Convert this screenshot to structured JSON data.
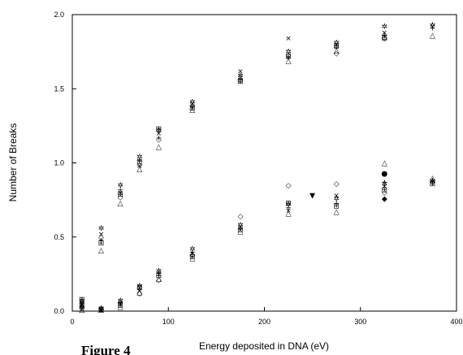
{
  "chart_data": {
    "type": "scatter",
    "title": "",
    "xlabel": "Energy deposited in DNA (eV)",
    "ylabel": "Number of Breaks",
    "xlim": [
      0,
      400
    ],
    "ylim": [
      0,
      2.0
    ],
    "x_ticks": [
      0,
      100,
      200,
      300,
      400
    ],
    "y_ticks": [
      0.0,
      0.5,
      1.0,
      1.5,
      2.0
    ],
    "x_tick_labels": [
      "0",
      "100",
      "200",
      "300",
      "400"
    ],
    "y_tick_labels": [
      "0.0",
      "0.5",
      "1.0",
      "1.5",
      "2.0"
    ],
    "grid": false,
    "legend": "none",
    "series": [
      {
        "marker": "plus",
        "symbol": "+",
        "points": [
          [
            10,
            0.03
          ],
          [
            30,
            0.48
          ],
          [
            50,
            0.82
          ],
          [
            70,
            1.02
          ],
          [
            90,
            1.17
          ],
          [
            125,
            1.38
          ],
          [
            175,
            1.57
          ],
          [
            225,
            1.71
          ],
          [
            275,
            1.78
          ],
          [
            325,
            1.86
          ],
          [
            375,
            1.91
          ],
          [
            10,
            0.02
          ],
          [
            30,
            0.01
          ],
          [
            50,
            0.06
          ],
          [
            70,
            0.15
          ],
          [
            90,
            0.26
          ],
          [
            125,
            0.4
          ],
          [
            175,
            0.56
          ],
          [
            225,
            0.7
          ],
          [
            275,
            0.73
          ],
          [
            325,
            0.87
          ],
          [
            375,
            0.87
          ]
        ]
      },
      {
        "marker": "cross",
        "symbol": "×",
        "points": [
          [
            10,
            0.05
          ],
          [
            30,
            0.52
          ],
          [
            50,
            0.8
          ],
          [
            70,
            0.98
          ],
          [
            90,
            1.2
          ],
          [
            125,
            1.4
          ],
          [
            175,
            1.62
          ],
          [
            225,
            1.84
          ],
          [
            275,
            1.8
          ],
          [
            325,
            1.88
          ],
          [
            375,
            1.92
          ],
          [
            10,
            0.04
          ],
          [
            30,
            0.01
          ],
          [
            50,
            0.05
          ],
          [
            70,
            0.14
          ],
          [
            90,
            0.25
          ],
          [
            125,
            0.39
          ],
          [
            175,
            0.57
          ],
          [
            225,
            0.68
          ],
          [
            275,
            0.78
          ],
          [
            325,
            0.84
          ],
          [
            375,
            0.88
          ]
        ]
      },
      {
        "marker": "star",
        "symbol": "✲",
        "points": [
          [
            10,
            0.07
          ],
          [
            30,
            0.56
          ],
          [
            50,
            0.85
          ],
          [
            70,
            1.04
          ],
          [
            90,
            1.22
          ],
          [
            125,
            1.41
          ],
          [
            175,
            1.59
          ],
          [
            225,
            1.75
          ],
          [
            275,
            1.81
          ],
          [
            325,
            1.92
          ],
          [
            375,
            1.93
          ],
          [
            10,
            0.06
          ],
          [
            30,
            0.02
          ],
          [
            50,
            0.07
          ],
          [
            70,
            0.17
          ],
          [
            90,
            0.27
          ],
          [
            125,
            0.42
          ],
          [
            175,
            0.58
          ],
          [
            225,
            0.72
          ],
          [
            275,
            0.76
          ],
          [
            325,
            0.86
          ],
          [
            375,
            0.88
          ]
        ]
      },
      {
        "marker": "boxed-plus",
        "symbol": "⊞",
        "points": [
          [
            10,
            0.04
          ],
          [
            30,
            0.46
          ],
          [
            50,
            0.79
          ],
          [
            70,
            1.01
          ],
          [
            90,
            1.23
          ],
          [
            125,
            1.37
          ],
          [
            175,
            1.55
          ],
          [
            225,
            1.72
          ],
          [
            275,
            1.79
          ],
          [
            325,
            1.85
          ],
          [
            10,
            0.08
          ],
          [
            30,
            0.01
          ],
          [
            50,
            0.04
          ],
          [
            70,
            0.16
          ],
          [
            90,
            0.24
          ],
          [
            125,
            0.37
          ],
          [
            175,
            0.55
          ],
          [
            225,
            0.73
          ],
          [
            275,
            0.71
          ],
          [
            325,
            0.82
          ],
          [
            375,
            0.86
          ]
        ]
      },
      {
        "marker": "triangle-up",
        "symbol": "△",
        "points": [
          [
            10,
            0.01
          ],
          [
            30,
            0.41
          ],
          [
            50,
            0.73
          ],
          [
            70,
            0.96
          ],
          [
            90,
            1.11
          ],
          [
            125,
            1.36
          ],
          [
            175,
            1.58
          ],
          [
            225,
            1.69
          ],
          [
            275,
            1.76
          ],
          [
            325,
            1.85
          ],
          [
            375,
            1.86
          ],
          [
            10,
            0.01
          ],
          [
            30,
            0.01
          ],
          [
            50,
            0.03
          ],
          [
            70,
            0.13
          ],
          [
            90,
            0.22
          ],
          [
            125,
            0.36
          ],
          [
            175,
            0.54
          ],
          [
            225,
            0.66
          ],
          [
            275,
            0.67
          ],
          [
            325,
            1.0
          ],
          [
            375,
            0.9
          ]
        ]
      },
      {
        "marker": "diamond-open",
        "symbol": "◇",
        "points": [
          [
            10,
            0.02
          ],
          [
            30,
            0.5
          ],
          [
            50,
            0.77
          ],
          [
            70,
            0.99
          ],
          [
            90,
            1.16
          ],
          [
            125,
            1.39
          ],
          [
            175,
            1.56
          ],
          [
            225,
            1.73
          ],
          [
            275,
            1.74
          ],
          [
            325,
            1.84
          ],
          [
            10,
            0.03
          ],
          [
            30,
            0.02
          ],
          [
            50,
            0.06
          ],
          [
            70,
            0.12
          ],
          [
            90,
            0.21
          ],
          [
            125,
            0.38
          ],
          [
            175,
            0.64
          ],
          [
            225,
            0.85
          ],
          [
            275,
            0.86
          ],
          [
            325,
            0.8
          ],
          [
            375,
            0.87
          ]
        ]
      },
      {
        "marker": "diamond-filled",
        "symbol": "◆",
        "points": [
          [
            325,
            0.76
          ]
        ]
      },
      {
        "marker": "circle-filled",
        "symbol": "●",
        "points": [
          [
            325,
            0.93
          ]
        ]
      },
      {
        "marker": "triangle-down-filled",
        "symbol": "▼",
        "points": [
          [
            250,
            0.78
          ]
        ]
      }
    ],
    "annotations": [
      "Figure 4"
    ]
  }
}
